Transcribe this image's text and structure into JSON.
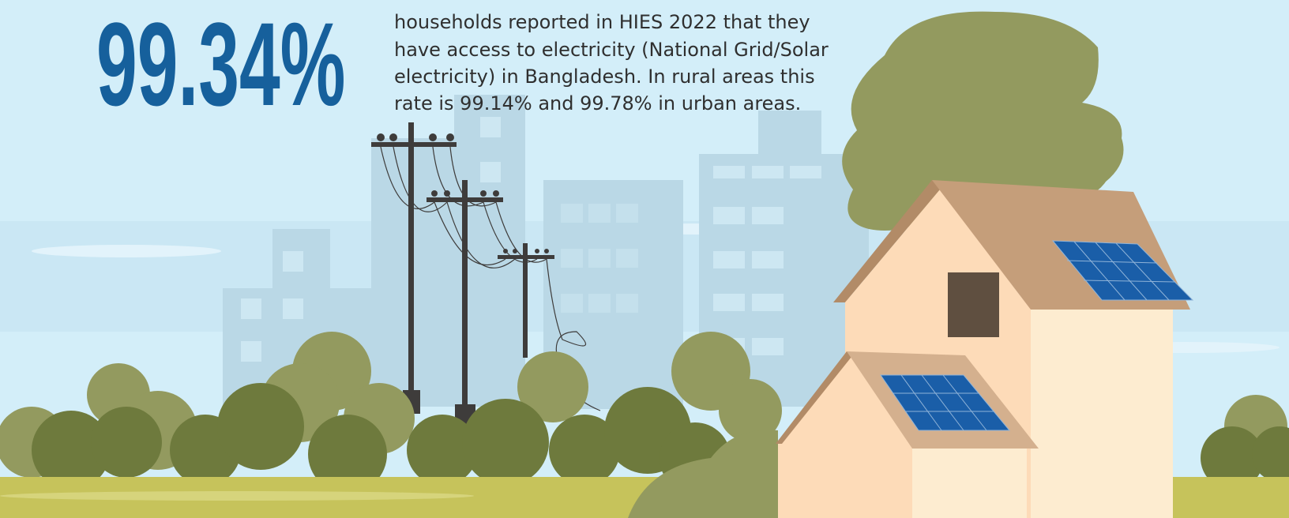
{
  "headline": "99.34%",
  "description": {
    "lines": [
      "households reported in HIES 2022 that they",
      "have access to electricity (National Grid/Solar",
      "electricity) in Bangladesh. In rural areas this",
      "rate is 99.14% and 99.78% in urban areas."
    ]
  }
}
